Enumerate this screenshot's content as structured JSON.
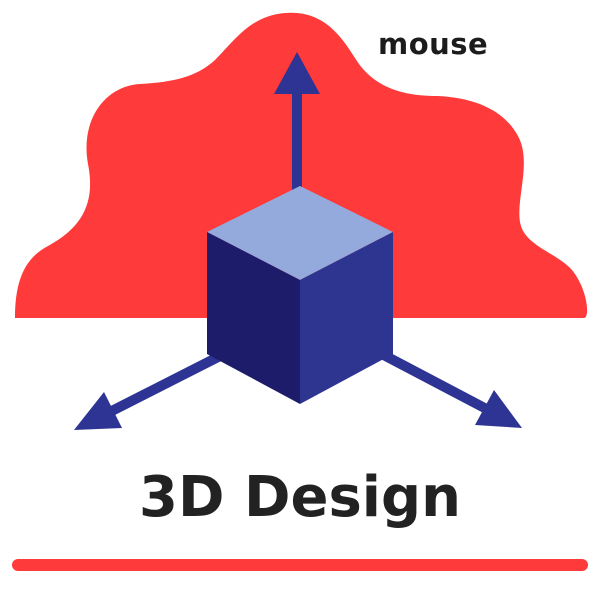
{
  "brand": {
    "wordmark": "mouse",
    "title": "3D Design"
  },
  "icons": {
    "blob": "cloud-blob-shape",
    "cube": "cube-icon",
    "arrow_up": "arrow-up-icon",
    "arrow_left": "arrow-down-left-icon",
    "arrow_right": "arrow-down-right-icon"
  },
  "colors": {
    "blob_red": "#ff3a3a",
    "cube_top": "#94a9dc",
    "cube_left": "#1c1c6a",
    "cube_right": "#2e3590",
    "arrow_blue": "#2d3493",
    "text_dark": "#222222",
    "background": "#ffffff"
  }
}
